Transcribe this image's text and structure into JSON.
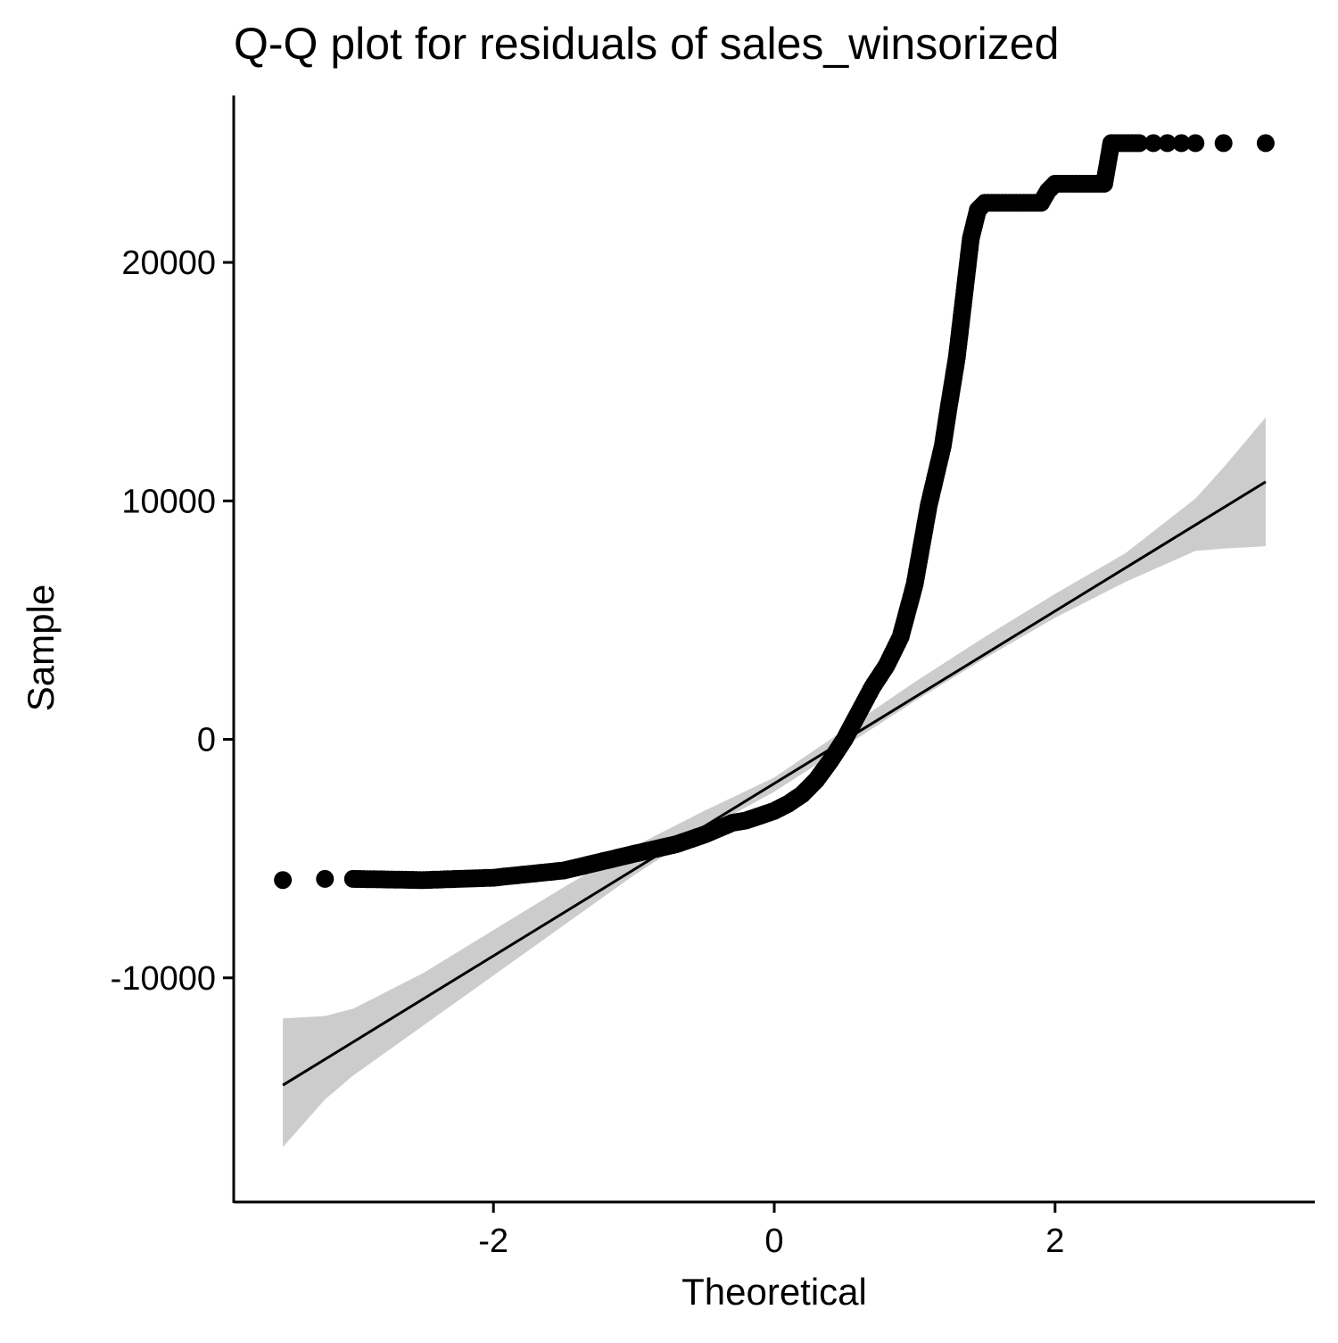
{
  "chart_data": {
    "type": "scatter",
    "title": "Q-Q plot for residuals of sales_winsorized",
    "xlabel": "Theoretical",
    "ylabel": "Sample",
    "xlim": [
      -3.85,
      3.85
    ],
    "ylim": [
      -19400,
      27000
    ],
    "xticks": [
      -2,
      0,
      2
    ],
    "xtick_labels": [
      "-2",
      "0",
      "2"
    ],
    "yticks": [
      -10000,
      0,
      10000,
      20000
    ],
    "ytick_labels": [
      "-10000",
      "0",
      "10000",
      "20000"
    ],
    "grid": false,
    "legend": "none",
    "point_color": "#000000",
    "line_color": "#000000",
    "band_color": "#cccccc",
    "reference_line": {
      "x": [
        -3.5,
        3.5
      ],
      "y": [
        -14500,
        10800
      ]
    },
    "confidence_band": {
      "x": [
        -3.5,
        -3.2,
        -3.0,
        -2.5,
        -2.0,
        -1.5,
        -1.0,
        -0.5,
        0.0,
        0.5,
        1.0,
        1.5,
        2.0,
        2.5,
        3.0,
        3.2,
        3.5
      ],
      "lower": [
        -17100,
        -15100,
        -14100,
        -12000,
        -9900,
        -7800,
        -5700,
        -3800,
        -2200,
        -300,
        1600,
        3400,
        5100,
        6600,
        7900,
        8000,
        8100
      ],
      "upper": [
        -11700,
        -11600,
        -11300,
        -9800,
        -8000,
        -6200,
        -4500,
        -3000,
        -1600,
        400,
        2400,
        4300,
        6100,
        7800,
        10100,
        11400,
        13500
      ]
    },
    "sample_quantiles": {
      "x": [
        -3.5,
        -3.2,
        -3.0,
        -2.5,
        -2.0,
        -1.5,
        -1.0,
        -0.7,
        -0.5,
        -0.3,
        -0.2,
        -0.1,
        0.0,
        0.1,
        0.2,
        0.3,
        0.4,
        0.5,
        0.6,
        0.7,
        0.8,
        0.9,
        1.0,
        1.1,
        1.2,
        1.25,
        1.3,
        1.35,
        1.4,
        1.45,
        1.5,
        1.55,
        1.6,
        1.7,
        1.8,
        1.9,
        1.95,
        2.0,
        2.1,
        2.2,
        2.3,
        2.35,
        2.38,
        2.4,
        2.5,
        2.6,
        2.7,
        2.8,
        2.9,
        3.0,
        3.2,
        3.5
      ],
      "y": [
        -5900,
        -5850,
        -5850,
        -5900,
        -5800,
        -5500,
        -4800,
        -4400,
        -4000,
        -3500,
        -3400,
        -3200,
        -3000,
        -2700,
        -2300,
        -1700,
        -900,
        0,
        1100,
        2200,
        3100,
        4300,
        6500,
        9800,
        12300,
        14200,
        16000,
        18500,
        21000,
        22200,
        22500,
        22500,
        22500,
        22500,
        22500,
        22500,
        23000,
        23300,
        23300,
        23300,
        23300,
        23300,
        24300,
        25000,
        25000,
        25000,
        25000,
        25000,
        25000,
        25000,
        25000,
        25000
      ]
    }
  }
}
